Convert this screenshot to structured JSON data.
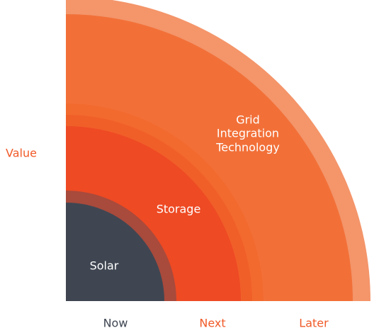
{
  "axis": {
    "y_label": "Value",
    "x_labels": [
      "Now",
      "Next",
      "Later"
    ]
  },
  "layers": [
    {
      "label_lines": [
        "Solar"
      ]
    },
    {
      "label_lines": [
        "Storage"
      ]
    },
    {
      "label_lines": [
        "Grid",
        "Integration",
        "Technology"
      ]
    }
  ]
}
